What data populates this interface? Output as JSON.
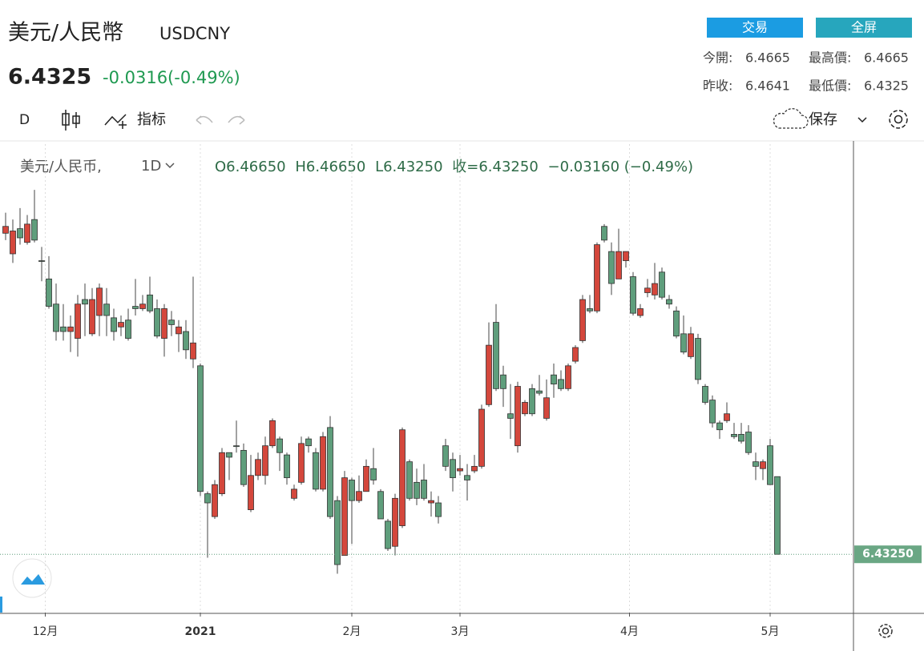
{
  "header": {
    "title": "美元/人民幣",
    "symbol": "USDCNY",
    "price": "6.4325",
    "change": "-0.0316(-0.49%)",
    "buttons": [
      "交易",
      "全屏"
    ],
    "stats": [
      [
        "今開:",
        "6.4665"
      ],
      [
        "最高價:",
        "6.4665"
      ],
      [
        "昨收:",
        "6.4641"
      ],
      [
        "最低價:",
        "6.4325"
      ]
    ]
  },
  "toolbar": {
    "interval": "D",
    "indicators": "指标",
    "save": "保存"
  },
  "chart_data": {
    "type": "candlestick",
    "legend_name": "美元/人民币,",
    "legend_interval": "1D",
    "legend_values": [
      "O6.46650",
      "H6.46650",
      "L6.43250",
      "收=6.43250",
      "−0.03160 (−0.49%)"
    ],
    "up_color": "#d4473c",
    "down_color": "#5f9e7c",
    "ylim": [
      6.407,
      6.612
    ],
    "last_price": {
      "value": 6.4325,
      "label": "6.43250"
    },
    "grid": "x",
    "xticks": [
      {
        "value": 5.5,
        "label": "12月"
      },
      {
        "value": 27,
        "label": "2021"
      },
      {
        "value": 48,
        "label": "2月"
      },
      {
        "value": 63,
        "label": "3月"
      },
      {
        "value": 86.5,
        "label": "4月"
      },
      {
        "value": 106,
        "label": "5月"
      }
    ],
    "ohlc": [
      [
        6.573,
        6.582,
        6.57,
        6.576
      ],
      [
        6.564,
        6.579,
        6.56,
        6.574
      ],
      [
        6.575,
        6.584,
        6.568,
        6.571
      ],
      [
        6.569,
        6.581,
        6.568,
        6.577
      ],
      [
        6.579,
        6.592,
        6.569,
        6.57
      ],
      [
        6.561,
        6.567,
        6.552,
        6.561
      ],
      [
        6.553,
        6.563,
        6.54,
        6.541
      ],
      [
        6.542,
        6.551,
        6.526,
        6.53
      ],
      [
        6.532,
        6.542,
        6.526,
        6.53
      ],
      [
        6.53,
        6.537,
        6.521,
        6.532
      ],
      [
        6.527,
        6.546,
        6.519,
        6.542
      ],
      [
        6.544,
        6.551,
        6.528,
        6.542
      ],
      [
        6.529,
        6.549,
        6.528,
        6.544
      ],
      [
        6.537,
        6.551,
        6.528,
        6.549
      ],
      [
        6.542,
        6.549,
        6.528,
        6.537
      ],
      [
        6.536,
        6.54,
        6.526,
        6.53
      ],
      [
        6.532,
        6.537,
        6.528,
        6.534
      ],
      [
        6.535,
        6.54,
        6.526,
        6.527
      ],
      [
        6.541,
        6.553,
        6.537,
        6.54
      ],
      [
        6.54,
        6.546,
        6.539,
        6.542
      ],
      [
        6.546,
        6.554,
        6.538,
        6.539
      ],
      [
        6.54,
        6.544,
        6.527,
        6.528
      ],
      [
        6.527,
        6.542,
        6.519,
        6.54
      ],
      [
        6.535,
        6.539,
        6.528,
        6.533
      ],
      [
        6.529,
        6.535,
        6.521,
        6.532
      ],
      [
        6.53,
        6.535,
        6.518,
        6.522
      ],
      [
        6.518,
        6.554,
        6.514,
        6.525
      ],
      [
        6.515,
        6.516,
        6.458,
        6.46
      ],
      [
        6.459,
        6.46,
        6.431,
        6.455
      ],
      [
        6.449,
        6.465,
        6.448,
        6.463
      ],
      [
        6.459,
        6.479,
        6.458,
        6.477
      ],
      [
        6.477,
        6.477,
        6.465,
        6.475
      ],
      [
        6.48,
        6.491,
        6.477,
        6.48
      ],
      [
        6.478,
        6.481,
        6.462,
        6.463
      ],
      [
        6.452,
        6.476,
        6.451,
        6.467
      ],
      [
        6.467,
        6.477,
        6.465,
        6.474
      ],
      [
        6.467,
        6.484,
        6.463,
        6.48
      ],
      [
        6.48,
        6.492,
        6.479,
        6.491
      ],
      [
        6.483,
        6.484,
        6.469,
        6.477
      ],
      [
        6.476,
        6.477,
        6.463,
        6.466
      ],
      [
        6.457,
        6.463,
        6.456,
        6.461
      ],
      [
        6.464,
        6.484,
        6.463,
        6.481
      ],
      [
        6.483,
        6.484,
        6.477,
        6.48
      ],
      [
        6.477,
        6.479,
        6.46,
        6.461
      ],
      [
        6.461,
        6.486,
        6.46,
        6.484
      ],
      [
        6.488,
        6.493,
        6.448,
        6.449
      ],
      [
        6.456,
        6.458,
        6.424,
        6.428
      ],
      [
        6.432,
        6.469,
        6.432,
        6.466
      ],
      [
        6.465,
        6.466,
        6.437,
        6.456
      ],
      [
        6.456,
        6.467,
        6.455,
        6.46
      ],
      [
        6.46,
        6.474,
        6.46,
        6.471
      ],
      [
        6.47,
        6.479,
        6.463,
        6.465
      ],
      [
        6.46,
        6.461,
        6.448,
        6.448
      ],
      [
        6.447,
        6.448,
        6.434,
        6.435
      ],
      [
        6.436,
        6.459,
        6.432,
        6.457
      ],
      [
        6.445,
        6.488,
        6.444,
        6.487
      ],
      [
        6.473,
        6.474,
        6.456,
        6.457
      ],
      [
        6.464,
        6.47,
        6.454,
        6.457
      ],
      [
        6.465,
        6.472,
        6.456,
        6.457
      ],
      [
        6.455,
        6.46,
        6.449,
        6.456
      ],
      [
        6.455,
        6.458,
        6.446,
        6.449
      ],
      [
        6.48,
        6.483,
        6.469,
        6.471
      ],
      [
        6.474,
        6.477,
        6.46,
        6.466
      ],
      [
        6.469,
        6.476,
        6.467,
        6.47
      ],
      [
        6.467,
        6.472,
        6.456,
        6.465
      ],
      [
        6.469,
        6.476,
        6.468,
        6.471
      ],
      [
        6.471,
        6.498,
        6.47,
        6.496
      ],
      [
        6.498,
        6.534,
        6.497,
        6.524
      ],
      [
        6.534,
        6.542,
        6.504,
        6.505
      ],
      [
        6.511,
        6.515,
        6.497,
        6.505
      ],
      [
        6.494,
        6.507,
        6.483,
        6.492
      ],
      [
        6.48,
        6.508,
        6.477,
        6.506
      ],
      [
        6.494,
        6.5,
        6.493,
        6.499
      ],
      [
        6.505,
        6.507,
        6.493,
        6.494
      ],
      [
        6.504,
        6.511,
        6.502,
        6.503
      ],
      [
        6.492,
        6.509,
        6.491,
        6.501
      ],
      [
        6.511,
        6.516,
        6.501,
        6.507
      ],
      [
        6.509,
        6.513,
        6.504,
        6.505
      ],
      [
        6.505,
        6.516,
        6.504,
        6.515
      ],
      [
        6.517,
        6.524,
        6.516,
        6.523
      ],
      [
        6.526,
        6.546,
        6.525,
        6.544
      ],
      [
        6.54,
        6.546,
        6.538,
        6.539
      ],
      [
        6.539,
        6.569,
        6.538,
        6.568
      ],
      [
        6.576,
        6.577,
        6.569,
        6.57
      ],
      [
        6.565,
        6.569,
        6.546,
        6.551
      ],
      [
        6.553,
        6.575,
        6.553,
        6.565
      ],
      [
        6.561,
        6.565,
        6.558,
        6.565
      ],
      [
        6.554,
        6.556,
        6.537,
        6.538
      ],
      [
        6.537,
        6.542,
        6.536,
        6.54
      ],
      [
        6.547,
        6.553,
        6.545,
        6.549
      ],
      [
        6.546,
        6.56,
        6.544,
        6.551
      ],
      [
        6.556,
        6.558,
        6.544,
        6.545
      ],
      [
        6.544,
        6.546,
        6.54,
        6.542
      ],
      [
        6.539,
        6.541,
        6.527,
        6.528
      ],
      [
        6.529,
        6.537,
        6.52,
        6.521
      ],
      [
        6.519,
        6.532,
        6.518,
        6.529
      ],
      [
        6.527,
        6.529,
        6.507,
        6.509
      ],
      [
        6.506,
        6.507,
        6.498,
        6.499
      ],
      [
        6.5,
        6.502,
        6.488,
        6.49
      ],
      [
        6.49,
        6.491,
        6.483,
        6.487
      ],
      [
        6.491,
        6.499,
        6.49,
        6.494
      ],
      [
        6.485,
        6.49,
        6.483,
        6.484
      ],
      [
        6.485,
        6.49,
        6.481,
        6.482
      ],
      [
        6.486,
        6.489,
        6.476,
        6.477
      ],
      [
        6.473,
        6.477,
        6.465,
        6.471
      ],
      [
        6.47,
        6.474,
        6.465,
        6.473
      ],
      [
        6.48,
        6.483,
        6.463,
        6.463
      ],
      [
        6.4665,
        6.4665,
        6.4325,
        6.4325
      ]
    ]
  }
}
